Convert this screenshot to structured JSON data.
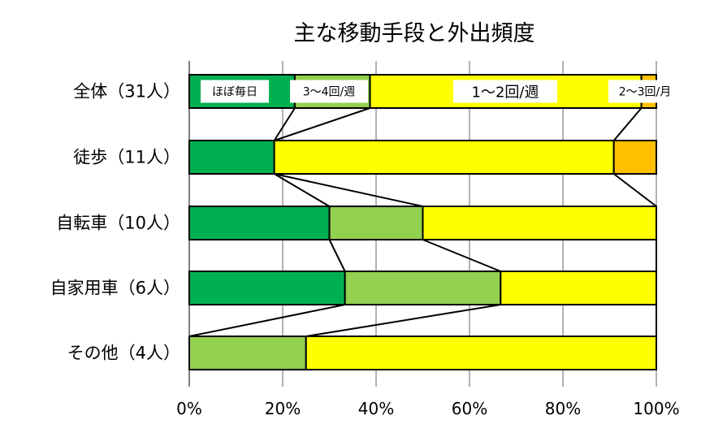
{
  "chart_data": {
    "type": "bar",
    "orientation": "horizontal",
    "stacked": "percent",
    "title": "主な移動手段と外出頻度",
    "categories": [
      "全体（31人）",
      "徒歩（11人）",
      "自転車（10人）",
      "自家用車（6人）",
      "その他（4人）"
    ],
    "series": [
      {
        "name": "ほぼ毎日",
        "color": "#00B050",
        "values": [
          22.6,
          18.2,
          30.0,
          33.3,
          0
        ]
      },
      {
        "name": "3～4回/週",
        "color": "#92D050",
        "values": [
          16.1,
          0,
          20.0,
          33.3,
          25.0
        ]
      },
      {
        "name": "1～2回/週",
        "color": "#FFFF00",
        "values": [
          58.1,
          72.7,
          50.0,
          33.3,
          75.0
        ]
      },
      {
        "name": "2～3回/月",
        "color": "#FFC000",
        "values": [
          3.2,
          9.1,
          0,
          0,
          0
        ]
      }
    ],
    "xticks": [
      "0%",
      "20%",
      "40%",
      "60%",
      "80%",
      "100%"
    ],
    "xlim": [
      0,
      100
    ],
    "grid": "vertical",
    "legend": "inline labels on top bar",
    "series_lines": true
  }
}
